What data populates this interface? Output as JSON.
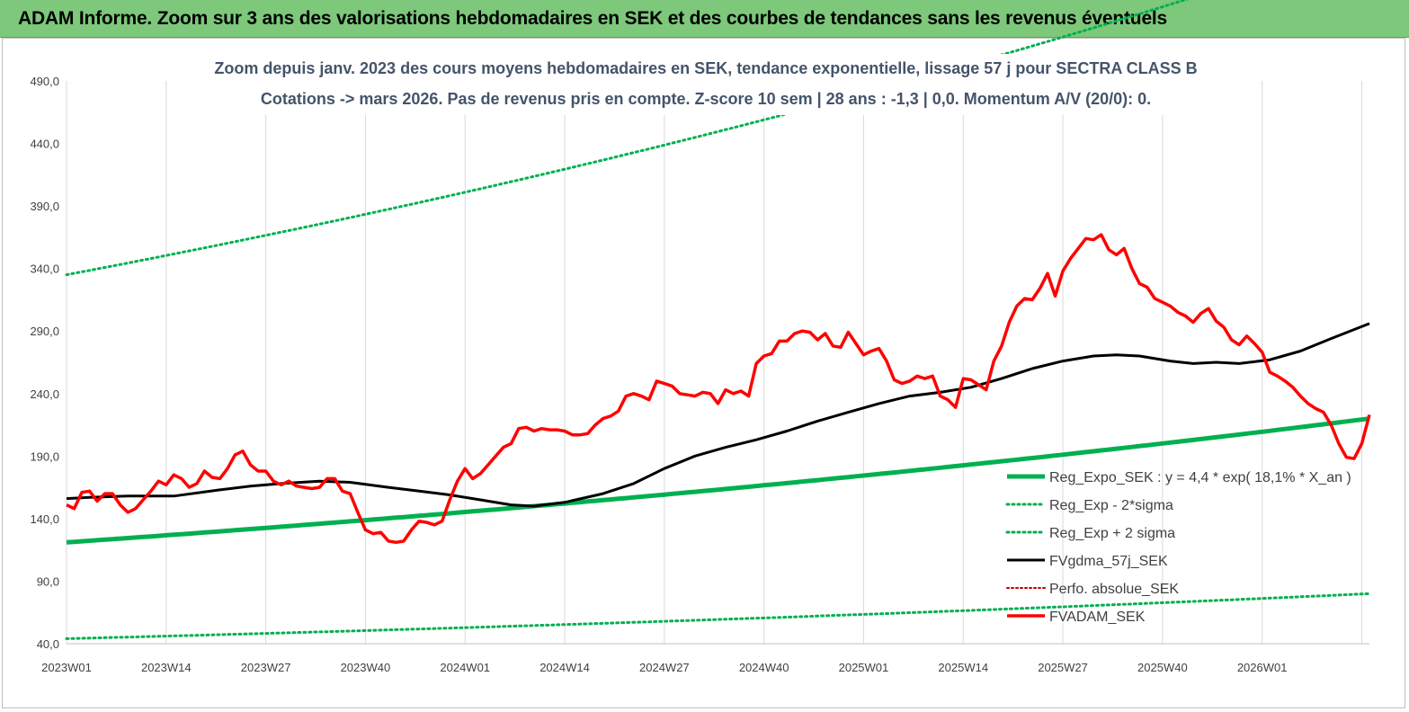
{
  "banner": {
    "title": "ADAM Informe. Zoom sur 3 ans des valorisations hebdomadaires en SEK et des courbes de tendances sans les revenus éventuels"
  },
  "colors": {
    "banner_bg": "#7dc87a",
    "trend_green": "#00b050",
    "fvadam_red": "#ff0000",
    "fvgdma_black": "#000000",
    "perfo_red": "#c00000"
  },
  "chart_data": {
    "type": "line",
    "subtitle_line1": "Zoom depuis janv. 2023 des cours moyens hebdomadaires en SEK, tendance exponentielle, lissage 57 j pour SECTRA CLASS B",
    "subtitle_line2": "Cotations -> mars 2026. Pas de revenus pris en compte. Z-score 10 sem | 28 ans : -1,3 | 0,0. Momentum A/V (20/0): 0.",
    "ylim": [
      40,
      490
    ],
    "yticks": [
      "40,0",
      "90,0",
      "140,0",
      "190,0",
      "240,0",
      "290,0",
      "340,0",
      "390,0",
      "440,0",
      "490,0"
    ],
    "xticks": [
      "2023W01",
      "2023W14",
      "2023W27",
      "2023W40",
      "2024W01",
      "2024W14",
      "2024W27",
      "2024W40",
      "2025W01",
      "2025W14",
      "2025W27",
      "2025W40",
      "2026W01"
    ],
    "x_count": 170,
    "grid": "vertical",
    "legend_position": "bottom-right",
    "legend": [
      "Reg_Expo_SEK : y = 4,4 * exp( 18,1% *  X_an )",
      "Reg_Exp - 2*sigma",
      "Reg_Exp + 2 sigma",
      "FVgdma_57j_SEK",
      "Perfo. absolue_SEK",
      "FVADAM_SEK"
    ],
    "series": [
      {
        "name": "Reg_Expo_SEK : y = 4,4 * exp( 18,1% *  X_an )",
        "style": "solid-thick-green",
        "start": 121,
        "end": 220
      },
      {
        "name": "Reg_Exp - 2*sigma",
        "style": "dotted-green",
        "start": 44,
        "end": 80
      },
      {
        "name": "Reg_Exp + 2 sigma",
        "style": "dotted-green",
        "start": 335,
        "end": 603
      },
      {
        "name": "Perfo. absolue_SEK",
        "style": "dotted-darkred",
        "points": []
      },
      {
        "name": "FVgdma_57j_SEK",
        "style": "solid-black",
        "points": [
          [
            0,
            156
          ],
          [
            3,
            157
          ],
          [
            8,
            158
          ],
          [
            14,
            158
          ],
          [
            20,
            163
          ],
          [
            24,
            166
          ],
          [
            28,
            168
          ],
          [
            33,
            170
          ],
          [
            37,
            169
          ],
          [
            42,
            165
          ],
          [
            46,
            162
          ],
          [
            50,
            159
          ],
          [
            54,
            155
          ],
          [
            58,
            151
          ],
          [
            61,
            150
          ],
          [
            65,
            153
          ],
          [
            70,
            160
          ],
          [
            74,
            168
          ],
          [
            78,
            180
          ],
          [
            82,
            190
          ],
          [
            86,
            197
          ],
          [
            90,
            203
          ],
          [
            94,
            210
          ],
          [
            98,
            218
          ],
          [
            102,
            225
          ],
          [
            106,
            232
          ],
          [
            110,
            238
          ],
          [
            114,
            241
          ],
          [
            118,
            245
          ],
          [
            122,
            252
          ],
          [
            126,
            260
          ],
          [
            130,
            266
          ],
          [
            134,
            270
          ],
          [
            137,
            271
          ],
          [
            140,
            270
          ],
          [
            144,
            266
          ],
          [
            147,
            264
          ],
          [
            150,
            265
          ],
          [
            153,
            264
          ],
          [
            157,
            267
          ],
          [
            161,
            274
          ],
          [
            165,
            284
          ],
          [
            170,
            296
          ]
        ]
      },
      {
        "name": "FVADAM_SEK",
        "style": "solid-red-thick",
        "points": [
          [
            0,
            151
          ],
          [
            1,
            148
          ],
          [
            2,
            161
          ],
          [
            3,
            162
          ],
          [
            4,
            154
          ],
          [
            5,
            160
          ],
          [
            6,
            160
          ],
          [
            7,
            151
          ],
          [
            8,
            145
          ],
          [
            9,
            148
          ],
          [
            10,
            155
          ],
          [
            11,
            162
          ],
          [
            12,
            170
          ],
          [
            13,
            167
          ],
          [
            14,
            175
          ],
          [
            15,
            172
          ],
          [
            16,
            165
          ],
          [
            17,
            168
          ],
          [
            18,
            178
          ],
          [
            19,
            173
          ],
          [
            20,
            172
          ],
          [
            21,
            180
          ],
          [
            22,
            191
          ],
          [
            23,
            194
          ],
          [
            24,
            183
          ],
          [
            25,
            178
          ],
          [
            26,
            178
          ],
          [
            27,
            170
          ],
          [
            28,
            167
          ],
          [
            29,
            170
          ],
          [
            30,
            166
          ],
          [
            31,
            165
          ],
          [
            32,
            164
          ],
          [
            33,
            165
          ],
          [
            34,
            172
          ],
          [
            35,
            172
          ],
          [
            36,
            162
          ],
          [
            37,
            160
          ],
          [
            38,
            145
          ],
          [
            39,
            131
          ],
          [
            40,
            128
          ],
          [
            41,
            129
          ],
          [
            42,
            122
          ],
          [
            43,
            121
          ],
          [
            44,
            122
          ],
          [
            45,
            131
          ],
          [
            46,
            138
          ],
          [
            47,
            137
          ],
          [
            48,
            135
          ],
          [
            49,
            138
          ],
          [
            50,
            155
          ],
          [
            51,
            170
          ],
          [
            52,
            180
          ],
          [
            53,
            172
          ],
          [
            54,
            176
          ],
          [
            55,
            183
          ],
          [
            56,
            190
          ],
          [
            57,
            197
          ],
          [
            58,
            200
          ],
          [
            59,
            212
          ],
          [
            60,
            213
          ],
          [
            61,
            210
          ],
          [
            62,
            212
          ],
          [
            63,
            211
          ],
          [
            64,
            211
          ],
          [
            65,
            210
          ],
          [
            66,
            207
          ],
          [
            67,
            207
          ],
          [
            68,
            208
          ],
          [
            69,
            215
          ],
          [
            70,
            220
          ],
          [
            71,
            222
          ],
          [
            72,
            226
          ],
          [
            73,
            238
          ],
          [
            74,
            240
          ],
          [
            75,
            238
          ],
          [
            76,
            235
          ],
          [
            77,
            250
          ],
          [
            78,
            248
          ],
          [
            79,
            246
          ],
          [
            80,
            240
          ],
          [
            81,
            239
          ],
          [
            82,
            238
          ],
          [
            83,
            241
          ],
          [
            84,
            240
          ],
          [
            85,
            232
          ],
          [
            86,
            243
          ],
          [
            87,
            240
          ],
          [
            88,
            242
          ],
          [
            89,
            238
          ],
          [
            90,
            264
          ],
          [
            91,
            270
          ],
          [
            92,
            272
          ],
          [
            93,
            282
          ],
          [
            94,
            282
          ],
          [
            95,
            288
          ],
          [
            96,
            290
          ],
          [
            97,
            289
          ],
          [
            98,
            283
          ],
          [
            99,
            288
          ],
          [
            100,
            278
          ],
          [
            101,
            277
          ],
          [
            102,
            289
          ],
          [
            103,
            280
          ],
          [
            104,
            271
          ],
          [
            105,
            274
          ],
          [
            106,
            276
          ],
          [
            107,
            266
          ],
          [
            108,
            251
          ],
          [
            109,
            248
          ],
          [
            110,
            250
          ],
          [
            111,
            254
          ],
          [
            112,
            252
          ],
          [
            113,
            254
          ],
          [
            114,
            238
          ],
          [
            115,
            235
          ],
          [
            116,
            229
          ],
          [
            117,
            252
          ],
          [
            118,
            251
          ],
          [
            119,
            247
          ],
          [
            120,
            243
          ],
          [
            121,
            266
          ],
          [
            122,
            278
          ],
          [
            123,
            297
          ],
          [
            124,
            310
          ],
          [
            125,
            316
          ],
          [
            126,
            315
          ],
          [
            127,
            324
          ],
          [
            128,
            336
          ],
          [
            129,
            318
          ],
          [
            130,
            338
          ],
          [
            131,
            348
          ],
          [
            132,
            356
          ],
          [
            133,
            364
          ],
          [
            134,
            363
          ],
          [
            135,
            367
          ],
          [
            136,
            355
          ],
          [
            137,
            351
          ],
          [
            138,
            356
          ],
          [
            139,
            340
          ],
          [
            140,
            328
          ],
          [
            141,
            325
          ],
          [
            142,
            316
          ],
          [
            143,
            313
          ],
          [
            144,
            310
          ],
          [
            145,
            305
          ],
          [
            146,
            302
          ],
          [
            147,
            297
          ],
          [
            148,
            304
          ],
          [
            149,
            308
          ],
          [
            150,
            298
          ],
          [
            151,
            293
          ],
          [
            152,
            283
          ],
          [
            153,
            279
          ],
          [
            154,
            286
          ],
          [
            155,
            280
          ],
          [
            156,
            273
          ],
          [
            157,
            257
          ],
          [
            158,
            254
          ],
          [
            159,
            250
          ],
          [
            160,
            245
          ],
          [
            161,
            238
          ],
          [
            162,
            232
          ],
          [
            163,
            228
          ],
          [
            164,
            225
          ],
          [
            165,
            215
          ],
          [
            166,
            200
          ],
          [
            167,
            189
          ],
          [
            168,
            188
          ],
          [
            169,
            200
          ],
          [
            170,
            223
          ]
        ]
      }
    ]
  }
}
